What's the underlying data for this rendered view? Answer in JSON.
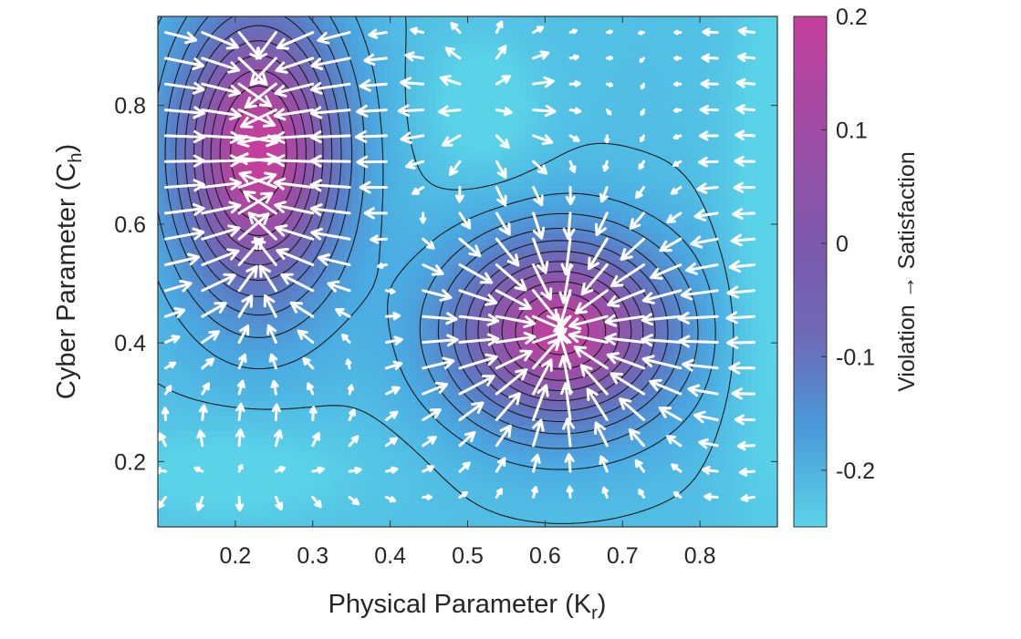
{
  "chart_data": {
    "type": "heatmap",
    "subtype": "filled-contour-with-quiver",
    "title": "",
    "xlabel": {
      "main": "Physical Parameter (K",
      "sub": "r",
      "close": ")"
    },
    "ylabel": {
      "main": "Cyber Parameter (C",
      "sub": "h",
      "close": ")"
    },
    "xlim": [
      0.1,
      0.9
    ],
    "ylim": [
      0.09,
      0.95
    ],
    "x_ticks": [
      0.2,
      0.3,
      0.4,
      0.5,
      0.6,
      0.7,
      0.8
    ],
    "x_tick_labels": [
      "0.2",
      "0.3",
      "0.4",
      "0.5",
      "0.6",
      "0.7",
      "0.8"
    ],
    "y_ticks": [
      0.2,
      0.4,
      0.6,
      0.8
    ],
    "y_tick_labels": [
      "0.2",
      "0.4",
      "0.6",
      "0.8"
    ],
    "grid": false,
    "colormap": {
      "low": "#5ad3e8",
      "mid": "#6f68b5",
      "high": "#c43f9c"
    },
    "contour_line_color": "#1a1a1a",
    "arrow_color": "#ffffff",
    "peaks": [
      {
        "x": 0.23,
        "y": 0.72,
        "value": 0.2
      },
      {
        "x": 0.62,
        "y": 0.42,
        "value": 0.19
      }
    ],
    "colorbar": {
      "range": [
        -0.25,
        0.2
      ],
      "ticks": [
        0.2,
        0.1,
        0,
        -0.1,
        -0.2
      ],
      "tick_labels": [
        "0.2",
        "0.1",
        "0",
        "-0.1",
        "-0.2"
      ],
      "label_low": "Violation",
      "arrow": "→",
      "label_high": "Satisfaction"
    }
  }
}
